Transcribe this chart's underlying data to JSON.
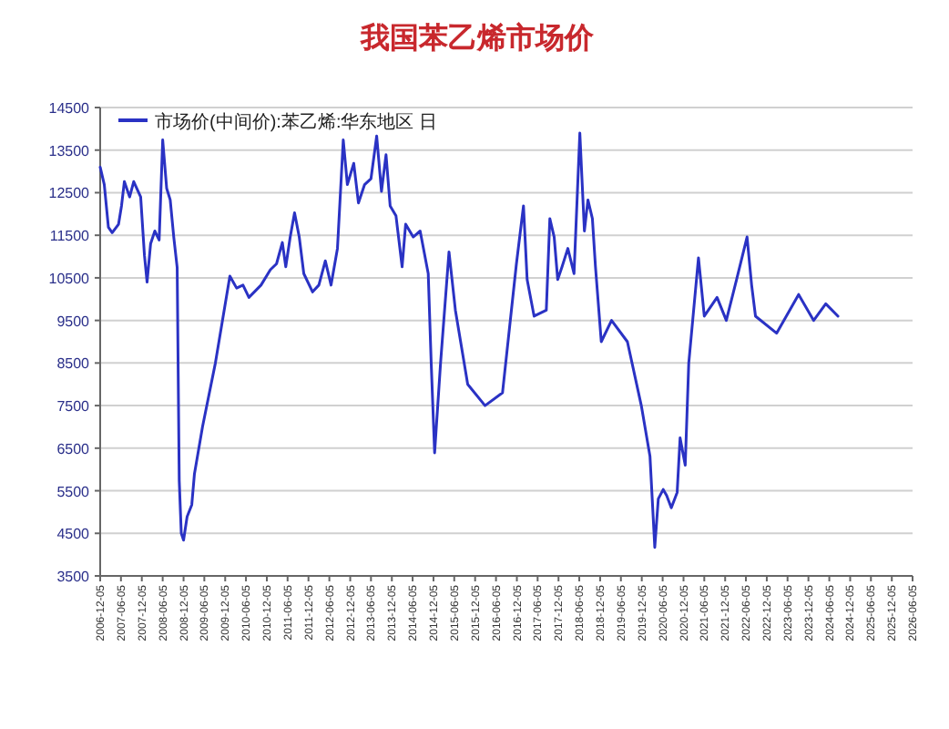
{
  "chart_data": {
    "type": "line",
    "title": "我国苯乙烯市场价",
    "grid": "y",
    "legend": "top left",
    "ylim": [
      3500,
      14500
    ],
    "yticks": [
      3500,
      4500,
      5500,
      6500,
      7500,
      8500,
      9500,
      10500,
      11500,
      12500,
      13500,
      14500
    ],
    "xlim": [
      "2006-12-05",
      "2026-06-05"
    ],
    "xticks": [
      "2006-12-05",
      "2007-06-05",
      "2007-12-05",
      "2008-06-05",
      "2008-12-05",
      "2009-06-05",
      "2009-12-05",
      "2010-06-05",
      "2010-12-05",
      "2011-06-05",
      "2011-12-05",
      "2012-06-05",
      "2012-12-05",
      "2013-06-05",
      "2013-12-05",
      "2014-06-05",
      "2014-12-05",
      "2015-06-05",
      "2015-12-05",
      "2016-06-05",
      "2016-12-05",
      "2017-06-05",
      "2017-12-05",
      "2018-06-05",
      "2018-12-05",
      "2019-06-05",
      "2019-12-05",
      "2020-06-05",
      "2020-12-05",
      "2021-06-05",
      "2021-12-05",
      "2022-06-05",
      "2022-12-05",
      "2023-06-05",
      "2023-12-05",
      "2024-06-05",
      "2024-12-05",
      "2025-06-05",
      "2025-12-05",
      "2026-06-05"
    ],
    "x": [
      "2006-12-05",
      "2007-01-10",
      "2007-02-15",
      "2007-03-20",
      "2007-05-15",
      "2007-06-10",
      "2007-07-05",
      "2007-08-20",
      "2007-09-25",
      "2007-11-25",
      "2007-12-28",
      "2008-01-20",
      "2008-02-20",
      "2008-03-28",
      "2008-05-05",
      "2008-06-05",
      "2008-07-10",
      "2008-08-10",
      "2008-09-10",
      "2008-10-10",
      "2008-10-28",
      "2008-11-15",
      "2008-12-05",
      "2009-01-05",
      "2009-02-15",
      "2009-03-10",
      "2009-05-20",
      "2009-09-10",
      "2010-01-15",
      "2010-03-15",
      "2010-05-10",
      "2010-07-01",
      "2010-10-15",
      "2011-01-05",
      "2011-02-28",
      "2011-04-20",
      "2011-05-20",
      "2011-06-28",
      "2011-08-05",
      "2011-09-15",
      "2011-10-25",
      "2012-01-10",
      "2012-03-05",
      "2012-05-01",
      "2012-06-20",
      "2012-08-15",
      "2012-10-05",
      "2012-11-10",
      "2013-01-05",
      "2013-02-15",
      "2013-04-10",
      "2013-06-05",
      "2013-07-25",
      "2013-09-05",
      "2013-10-15",
      "2013-11-20",
      "2014-01-10",
      "2014-03-05",
      "2014-04-05",
      "2014-06-10",
      "2014-08-10",
      "2014-10-20",
      "2014-11-15",
      "2014-12-15",
      "2015-02-05",
      "2015-04-20",
      "2015-06-15",
      "2015-10-01",
      "2016-03-01",
      "2016-08-01",
      "2016-12-01",
      "2017-02-01",
      "2017-03-05",
      "2017-05-05",
      "2017-08-20",
      "2017-09-20",
      "2017-10-28",
      "2017-11-28",
      "2018-01-05",
      "2018-02-25",
      "2018-04-20",
      "2018-06-10",
      "2018-07-20",
      "2018-08-20",
      "2018-09-28",
      "2018-10-25",
      "2018-12-15",
      "2019-03-15",
      "2019-08-01",
      "2019-12-01",
      "2020-02-15",
      "2020-03-28",
      "2020-04-28",
      "2020-06-10",
      "2020-07-10",
      "2020-08-20",
      "2020-10-10",
      "2020-11-05",
      "2020-12-20",
      "2021-01-20",
      "2021-04-15",
      "2021-06-05",
      "2021-09-25",
      "2021-12-15",
      "2022-03-15",
      "2022-06-15",
      "2022-07-25",
      "2022-08-28",
      "2023-03-01",
      "2023-09-10",
      "2024-01-20",
      "2024-05-05",
      "2024-08-20"
    ],
    "series": [
      {
        "name": "市场价(中间价):苯乙烯:华东地区 日",
        "color": "#2a32c4",
        "values": [
          13100,
          12690,
          11690,
          11560,
          11760,
          12190,
          12760,
          12400,
          12760,
          12400,
          11030,
          10400,
          11300,
          11600,
          11390,
          13740,
          12600,
          12330,
          11460,
          10740,
          5740,
          4500,
          4340,
          4890,
          5170,
          5890,
          7000,
          8500,
          10540,
          10260,
          10330,
          10040,
          10330,
          10690,
          10830,
          11330,
          10760,
          11460,
          12030,
          11460,
          10600,
          10170,
          10330,
          10900,
          10330,
          11190,
          13740,
          12690,
          13190,
          12260,
          12690,
          12830,
          13830,
          12530,
          13390,
          12190,
          11960,
          10760,
          11760,
          11460,
          11600,
          10600,
          8500,
          6390,
          8500,
          11110,
          9740,
          8000,
          7500,
          7800,
          10830,
          12190,
          10460,
          9600,
          9740,
          11890,
          11460,
          10460,
          10760,
          11190,
          10600,
          13900,
          11600,
          12330,
          11890,
          10760,
          9000,
          9500,
          9000,
          7500,
          6310,
          4170,
          5310,
          5530,
          5390,
          5100,
          5460,
          6740,
          6100,
          8500,
          10970,
          9600,
          10040,
          9500,
          10460,
          11460,
          10330,
          9600,
          9200,
          10110,
          9500,
          9890,
          9600
        ]
      }
    ]
  }
}
